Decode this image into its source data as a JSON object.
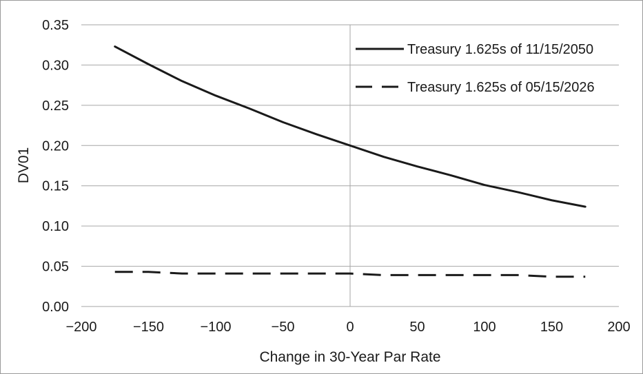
{
  "chart_data": {
    "type": "line",
    "title": "",
    "xlabel": "Change in 30-Year Par Rate",
    "ylabel": "DV01",
    "xlim": [
      -200,
      200
    ],
    "ylim": [
      0.0,
      0.35
    ],
    "xticks": [
      -200,
      -150,
      -100,
      -50,
      0,
      50,
      100,
      150,
      200
    ],
    "xtick_labels": [
      "−200",
      "−150",
      "−100",
      "−50",
      "0",
      "50",
      "100",
      "150",
      "200"
    ],
    "yticks": [
      0.0,
      0.05,
      0.1,
      0.15,
      0.2,
      0.25,
      0.3,
      0.35
    ],
    "ytick_labels": [
      "0.00",
      "0.05",
      "0.10",
      "0.15",
      "0.20",
      "0.25",
      "0.30",
      "0.35"
    ],
    "grid": "horizontal",
    "legend_position": "top-right",
    "series": [
      {
        "name": "Treasury 1.625s of 11/15/2050",
        "style": "solid",
        "color": "#1a1a1a",
        "x": [
          -175,
          -150,
          -125,
          -100,
          -75,
          -50,
          -25,
          0,
          25,
          50,
          75,
          100,
          125,
          150,
          175
        ],
        "y": [
          0.323,
          0.301,
          0.28,
          0.262,
          0.246,
          0.229,
          0.214,
          0.2,
          0.186,
          0.174,
          0.163,
          0.151,
          0.142,
          0.132,
          0.124
        ]
      },
      {
        "name": "Treasury 1.625s of 05/15/2026",
        "style": "dashed",
        "color": "#1a1a1a",
        "x": [
          -175,
          -150,
          -125,
          -100,
          -75,
          -50,
          -25,
          0,
          25,
          50,
          75,
          100,
          125,
          150,
          175
        ],
        "y": [
          0.043,
          0.043,
          0.041,
          0.041,
          0.041,
          0.041,
          0.041,
          0.041,
          0.039,
          0.039,
          0.039,
          0.039,
          0.039,
          0.037,
          0.037
        ]
      }
    ]
  }
}
